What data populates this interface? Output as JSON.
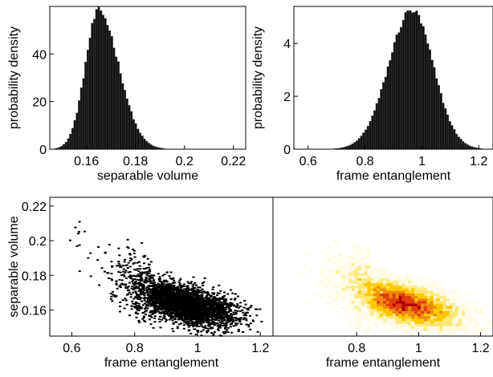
{
  "chart_data": [
    {
      "type": "bar",
      "panel": "top-left",
      "xlabel": "separable volume",
      "ylabel": "probability density",
      "xlim": [
        0.145,
        0.225
      ],
      "ylim": [
        0,
        60
      ],
      "xticks": [
        "0.16",
        "0.18",
        "0.2",
        "0.22"
      ],
      "yticks": [
        "0",
        "20",
        "40"
      ],
      "distribution": {
        "peak_x": 0.165,
        "peak_density": 58,
        "sigma_left": 0.0055,
        "sigma_right": 0.0082
      },
      "color": "#111111"
    },
    {
      "type": "bar",
      "panel": "top-right",
      "xlabel": "frame entanglement",
      "ylabel": "probability density",
      "xlim": [
        0.55,
        1.25
      ],
      "ylim": [
        0,
        5.4
      ],
      "xticks": [
        "0.6",
        "0.8",
        "1",
        "1.2"
      ],
      "yticks": [
        "0",
        "2",
        "4"
      ],
      "distribution": {
        "peak_x": 0.965,
        "peak_density": 5.25,
        "sigma_left": 0.082,
        "sigma_right": 0.075
      },
      "color": "#111111"
    },
    {
      "type": "scatter",
      "panel": "bottom-left",
      "xlabel": "frame entanglement",
      "ylabel": "separable volume",
      "xlim": [
        0.53,
        1.24
      ],
      "ylim": [
        0.145,
        0.225
      ],
      "xticks": [
        "0.6",
        "0.8",
        "1",
        "1.2"
      ],
      "yticks": [
        "0.16",
        "0.18",
        "0.2",
        "0.22"
      ],
      "cloud": {
        "center_x": 0.95,
        "center_y": 0.164,
        "sigma_x": 0.085,
        "sigma_y": 0.0065,
        "correlation": -0.55
      },
      "color": "#000000"
    },
    {
      "type": "heatmap",
      "panel": "bottom-right",
      "xlabel": "frame entanglement",
      "xlim": [
        0.53,
        1.24
      ],
      "ylim": [
        0.145,
        0.225
      ],
      "xticks": [
        "0.8",
        "1",
        "1.2"
      ],
      "cloud": {
        "center_x": 0.95,
        "center_y": 0.164,
        "sigma_x": 0.085,
        "sigma_y": 0.0065,
        "correlation": -0.55
      },
      "colormap": [
        "#fff8d0",
        "#ffe566",
        "#ffc800",
        "#f08a10",
        "#e04010",
        "#b00000"
      ]
    }
  ]
}
